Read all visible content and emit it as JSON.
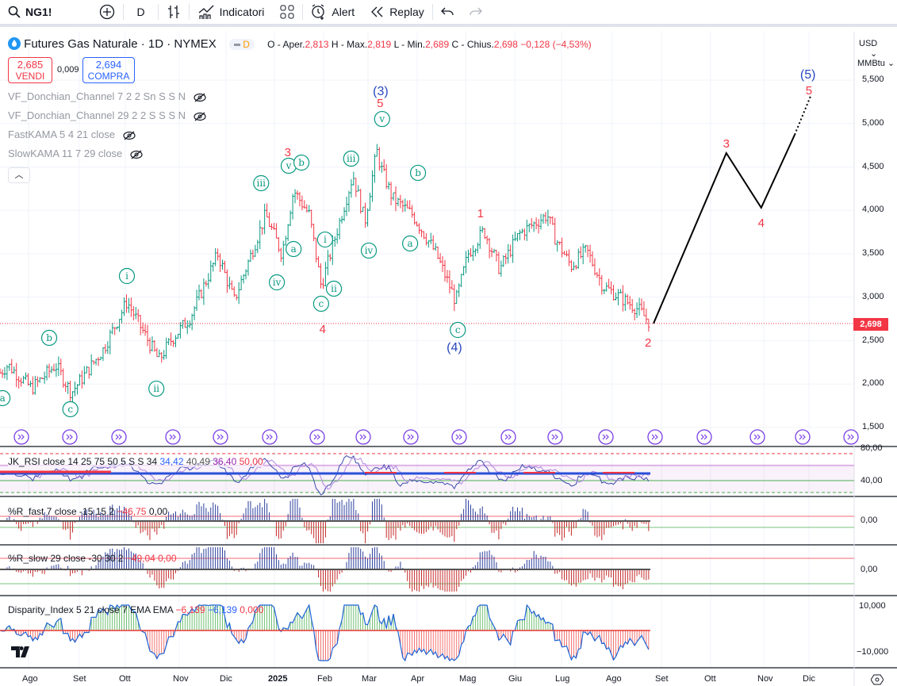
{
  "toolbar": {
    "symbol": "NG1!",
    "interval": "D",
    "indicators": "Indicatori",
    "alert": "Alert",
    "replay": "Replay"
  },
  "legend": {
    "title": "Futures Gas Naturale · 1D · NYMEX",
    "badge": "D",
    "o_label": "O - Aper.",
    "o": "2,813",
    "h_label": "H - Max.",
    "h": "2,819",
    "l_label": "L - Min.",
    "l": "2,689",
    "c_label": "C - Chius.",
    "c": "2,698",
    "change": "−0,128 (−4,53%)"
  },
  "trade": {
    "sell_price": "2,685",
    "sell_label": "VENDI",
    "spread": "0,009",
    "buy_price": "2,694",
    "buy_label": "COMPRA"
  },
  "studies": [
    "VF_Donchian_Channel 7 2 2 Sn S S N",
    "VF_Donchian_Channel 29 2 2 S S S N",
    "FastKAMA 5 4 21 close",
    "SlowKAMA 11 7 29 close"
  ],
  "panes": {
    "rsi": {
      "name": "JK_RSI close 14 25 75 50 5 S S 34",
      "v1": "34,42",
      "v2": "40,49",
      "v3": "36,40",
      "v4": "50,00",
      "axis": [
        "80,00",
        "40,00"
      ]
    },
    "rfast": {
      "name": "%R_fast 7 close -15 15 2",
      "v1": "−46,75",
      "v2": "0,00",
      "axis": "0,00"
    },
    "rslow": {
      "name": "%R_slow 29 close -30 30 2",
      "v1": "−49,04",
      "v2": "0,00",
      "axis": "0,00"
    },
    "disp": {
      "name": "Disparity_Index 5 21 close 7 EMA EMA",
      "v1": "−6,139",
      "v2": "−6,139",
      "v3": "0,000",
      "axis": [
        "10,000",
        "−10,000"
      ]
    }
  },
  "price_axis": {
    "currency": "USD",
    "unit": "MMBtu",
    "ticks": [
      "5,500",
      "5,000",
      "4,500",
      "4,000",
      "3,500",
      "3,000",
      "2,500",
      "2,000",
      "1,500"
    ],
    "last": "2,698"
  },
  "time_axis": [
    "Ago",
    "Set",
    "Ott",
    "Nov",
    "Dic",
    "2025",
    "Feb",
    "Mar",
    "Apr",
    "Mag",
    "Giu",
    "Lug",
    "Ago",
    "Set",
    "Ott",
    "Nov",
    "Dic"
  ],
  "colors": {
    "up": "#089981",
    "down": "#f23645",
    "wave_minor": "#089981",
    "wave_red": "#f23645",
    "wave_blue": "#2962ff",
    "accent": "#2962ff"
  },
  "chart_data": {
    "type": "ohlc",
    "time_unit": "months since 2024-08-01",
    "price_anchors": [
      [
        -0.58,
        2130
      ],
      [
        -0.42,
        2220
      ],
      [
        0.06,
        1950
      ],
      [
        0.55,
        2220
      ],
      [
        0.87,
        1900
      ],
      [
        1.52,
        2400
      ],
      [
        2.0,
        2950
      ],
      [
        2.65,
        2270
      ],
      [
        2.89,
        2500
      ],
      [
        3.29,
        2770
      ],
      [
        3.85,
        3500
      ],
      [
        4.18,
        2960
      ],
      [
        4.82,
        3950
      ],
      [
        5.15,
        3500
      ],
      [
        5.39,
        4230
      ],
      [
        5.71,
        3950
      ],
      [
        5.95,
        3130
      ],
      [
        6.6,
        4410
      ],
      [
        6.84,
        3870
      ],
      [
        7.08,
        4690
      ],
      [
        7.16,
        4500
      ],
      [
        7.4,
        4140
      ],
      [
        7.81,
        3950
      ],
      [
        8.29,
        3500
      ],
      [
        8.69,
        2950
      ],
      [
        8.94,
        3500
      ],
      [
        9.26,
        3770
      ],
      [
        9.58,
        3320
      ],
      [
        9.98,
        3730
      ],
      [
        10.55,
        3950
      ],
      [
        10.71,
        3680
      ],
      [
        11.03,
        3360
      ],
      [
        11.35,
        3540
      ],
      [
        11.68,
        3130
      ],
      [
        12.16,
        2950
      ],
      [
        12.4,
        2860
      ],
      [
        12.65,
        2698
      ]
    ],
    "projection": [
      [
        12.71,
        2698
      ],
      [
        14.19,
        4660
      ],
      [
        14.9,
        4030
      ],
      [
        15.58,
        4870
      ],
      [
        15.9,
        5310
      ]
    ],
    "wave_labels": [
      {
        "text": "a",
        "style": "circle",
        "t": -0.53,
        "p": 1838
      },
      {
        "text": "b",
        "style": "circle",
        "t": 0.42,
        "p": 2532
      },
      {
        "text": "c",
        "style": "circle",
        "t": 0.85,
        "p": 1710
      },
      {
        "text": "i",
        "style": "circle",
        "t": 2.0,
        "p": 3244
      },
      {
        "text": "ii",
        "style": "circle",
        "t": 2.6,
        "p": 1947
      },
      {
        "text": "iii",
        "style": "circle",
        "t": 4.73,
        "p": 4313
      },
      {
        "text": "a",
        "style": "circle",
        "t": 5.39,
        "p": 3555
      },
      {
        "text": "iv",
        "style": "circle",
        "t": 5.05,
        "p": 3171
      },
      {
        "text": "v",
        "style": "circle",
        "t": 5.29,
        "p": 4514
      },
      {
        "text": "b",
        "style": "circle",
        "t": 5.55,
        "p": 4550
      },
      {
        "text": "i",
        "style": "circle",
        "t": 6.03,
        "p": 3664
      },
      {
        "text": "ii",
        "style": "circle",
        "t": 6.21,
        "p": 3098
      },
      {
        "text": "c",
        "style": "circle",
        "t": 5.95,
        "p": 2925
      },
      {
        "text": "iii",
        "style": "circle",
        "t": 6.56,
        "p": 4596
      },
      {
        "text": "iv",
        "style": "circle",
        "t": 6.92,
        "p": 3537
      },
      {
        "text": "v",
        "style": "circle",
        "t": 7.19,
        "p": 5052
      },
      {
        "text": "b",
        "style": "circle",
        "t": 7.92,
        "p": 4432
      },
      {
        "text": "a",
        "style": "circle",
        "t": 7.76,
        "p": 3619
      },
      {
        "text": "c",
        "style": "circle",
        "t": 8.73,
        "p": 2623
      },
      {
        "text": "3",
        "style": "red",
        "t": 5.27,
        "p": 4678
      },
      {
        "text": "4",
        "style": "red",
        "t": 5.98,
        "p": 2642
      },
      {
        "text": "5",
        "style": "red",
        "t": 7.15,
        "p": 5244
      },
      {
        "text": "1",
        "style": "red",
        "t": 9.19,
        "p": 3975
      },
      {
        "text": "2",
        "style": "red",
        "t": 12.6,
        "p": 2486
      },
      {
        "text": "3",
        "style": "red",
        "t": 14.19,
        "p": 4779
      },
      {
        "text": "4",
        "style": "red",
        "t": 14.9,
        "p": 3865
      },
      {
        "text": "5",
        "style": "red",
        "t": 15.87,
        "p": 5390
      },
      {
        "text": "(3)",
        "style": "blue",
        "t": 7.16,
        "p": 5381
      },
      {
        "text": "(4)",
        "style": "blue",
        "t": 8.66,
        "p": 2432
      },
      {
        "text": "(5)",
        "style": "blue",
        "t": 15.85,
        "p": 5573
      }
    ],
    "ylim": [
      1500,
      5500
    ]
  }
}
